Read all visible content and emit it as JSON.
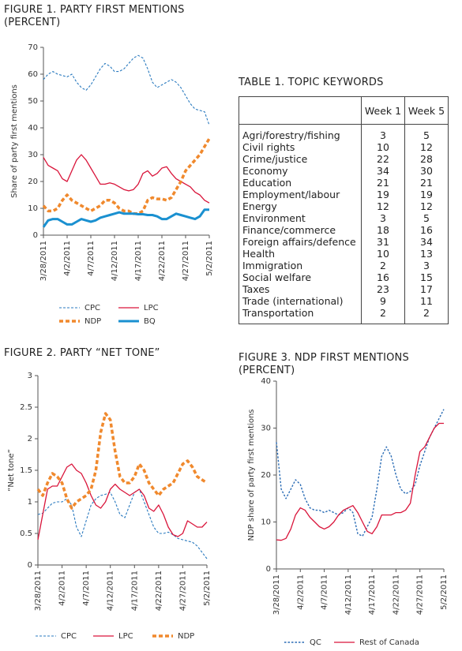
{
  "chart_data": [
    {
      "type": "line",
      "title": "FIGURE 1. PARTY FIRST MENTIONS (PERCENT)",
      "y_label": "Share of party first mentions",
      "categories": [
        "3/28/2011",
        null,
        null,
        null,
        null,
        "4/2/2011",
        null,
        null,
        null,
        null,
        "4/7/2011",
        null,
        null,
        null,
        null,
        "4/12/2011",
        null,
        null,
        null,
        null,
        "4/17/2011",
        null,
        null,
        null,
        null,
        "4/22/2011",
        null,
        null,
        null,
        null,
        "4/27/2011",
        null,
        null,
        null,
        null,
        "5/2/2011"
      ],
      "ylim": [
        0,
        70
      ],
      "yticks": [
        0,
        10,
        20,
        30,
        40,
        50,
        60,
        70
      ],
      "legend": "bottom",
      "series": [
        {
          "name": "CPC",
          "color": "#2a7abf",
          "line_style": "thin-dashed",
          "values": [
            58,
            60,
            61,
            60,
            59.5,
            59,
            60,
            57,
            55,
            54,
            56,
            59,
            62,
            64,
            63,
            61,
            61,
            62,
            64,
            66,
            67,
            66,
            62,
            57,
            55,
            56,
            57,
            58,
            57,
            55,
            52,
            49,
            47,
            46.5,
            46,
            41
          ]
        },
        {
          "name": "LPC",
          "color": "#d9143a",
          "line_style": "solid",
          "values": [
            29,
            26,
            25,
            24,
            21,
            20,
            24,
            28,
            30,
            28,
            25,
            22,
            19,
            19,
            19.5,
            19,
            18,
            17,
            16.5,
            17,
            19,
            23,
            24,
            22,
            23,
            25,
            25.5,
            23,
            21,
            20,
            19,
            18,
            16,
            15,
            13,
            12
          ]
        },
        {
          "name": "NDP",
          "color": "#f0892d",
          "line_style": "thick-dashed",
          "values": [
            11,
            9,
            9,
            10,
            13,
            15,
            13,
            12,
            11,
            10,
            9,
            10,
            11,
            13,
            13,
            12,
            10,
            9,
            9,
            8,
            8,
            9,
            13,
            14,
            13.5,
            13.5,
            13,
            14,
            17,
            20,
            24,
            26,
            28,
            30,
            33,
            36
          ]
        },
        {
          "name": "BQ",
          "color": "#1a90d0",
          "line_style": "thick-solid",
          "values": [
            3,
            5.5,
            6,
            6,
            5,
            4,
            4,
            5,
            6,
            5.5,
            5,
            5.5,
            6.5,
            7,
            7.5,
            8,
            8.5,
            8,
            8,
            8,
            7.8,
            7.8,
            7.5,
            7.5,
            7,
            6,
            6,
            7,
            8,
            7.5,
            7,
            6.5,
            6,
            7,
            9.5,
            9.5
          ]
        }
      ]
    },
    {
      "type": "line",
      "title": "FIGURE 2. PARTY “NET TONE”",
      "y_label": "“Net tone”",
      "categories": [
        "3/28/2011",
        null,
        null,
        null,
        null,
        "4/2/2011",
        null,
        null,
        null,
        null,
        "4/7/2011",
        null,
        null,
        null,
        null,
        "4/12/2011",
        null,
        null,
        null,
        null,
        "4/17/2011",
        null,
        null,
        null,
        null,
        "4/22/2011",
        null,
        null,
        null,
        null,
        "4/27/2011",
        null,
        null,
        null,
        null,
        "5/2/2011"
      ],
      "ylim": [
        0,
        3
      ],
      "yticks": [
        0,
        0.5,
        1,
        1.5,
        2,
        2.5,
        3
      ],
      "legend": "bottom",
      "series": [
        {
          "name": "CPC",
          "color": "#2a7abf",
          "line_style": "thin-dashed",
          "values": [
            0.8,
            0.82,
            0.9,
            0.98,
            1.0,
            1.0,
            1.05,
            0.95,
            0.6,
            0.45,
            0.7,
            0.95,
            1.05,
            1.1,
            1.12,
            1.15,
            1.0,
            0.8,
            0.75,
            0.95,
            1.15,
            1.2,
            1.0,
            0.8,
            0.6,
            0.5,
            0.5,
            0.52,
            0.48,
            0.42,
            0.4,
            0.38,
            0.36,
            0.3,
            0.2,
            0.1
          ]
        },
        {
          "name": "LPC",
          "color": "#d9143a",
          "line_style": "solid",
          "values": [
            0.4,
            0.8,
            1.2,
            1.25,
            1.25,
            1.4,
            1.55,
            1.6,
            1.5,
            1.45,
            1.3,
            1.1,
            0.95,
            0.9,
            1.0,
            1.2,
            1.28,
            1.2,
            1.15,
            1.1,
            1.15,
            1.2,
            1.1,
            0.9,
            0.85,
            0.95,
            0.8,
            0.6,
            0.48,
            0.45,
            0.5,
            0.7,
            0.65,
            0.6,
            0.6,
            0.68
          ]
        },
        {
          "name": "NDP",
          "color": "#f0892d",
          "line_style": "thick-dashed",
          "values": [
            1.2,
            1.1,
            1.3,
            1.45,
            1.4,
            1.3,
            1.05,
            0.9,
            1.0,
            1.05,
            1.1,
            1.2,
            1.5,
            2.1,
            2.4,
            2.3,
            1.8,
            1.4,
            1.3,
            1.3,
            1.4,
            1.6,
            1.5,
            1.3,
            1.2,
            1.1,
            1.2,
            1.25,
            1.3,
            1.45,
            1.6,
            1.65,
            1.55,
            1.4,
            1.35,
            1.3
          ]
        }
      ]
    },
    {
      "type": "line",
      "title": "FIGURE 3. NDP FIRST MENTIONS (PERCENT)",
      "y_label": "NDP share of party first mentions",
      "categories": [
        "3/28/2011",
        null,
        null,
        null,
        null,
        "4/2/2011",
        null,
        null,
        null,
        null,
        "4/7/2011",
        null,
        null,
        null,
        null,
        "4/12/2011",
        null,
        null,
        null,
        null,
        "4/17/2011",
        null,
        null,
        null,
        null,
        "4/22/2011",
        null,
        null,
        null,
        null,
        "4/27/2011",
        null,
        null,
        null,
        null,
        "5/2/2011"
      ],
      "ylim": [
        0,
        40
      ],
      "yticks": [
        0,
        10,
        20,
        30,
        40
      ],
      "legend": "bottom",
      "series": [
        {
          "name": "QC",
          "color": "#2a6cb5",
          "line_style": "dotted",
          "values": [
            27,
            17,
            15,
            17,
            19,
            18,
            15,
            13,
            12.5,
            12.5,
            12,
            12.5,
            12,
            11.5,
            12,
            13,
            12,
            7.5,
            7,
            9,
            11,
            17,
            24,
            26,
            24,
            20,
            17,
            16,
            16.5,
            18,
            22,
            25,
            28,
            30,
            32,
            34
          ]
        },
        {
          "name": "Rest of Canada",
          "color": "#d9143a",
          "line_style": "solid",
          "values": [
            6.2,
            6.1,
            6.5,
            8.5,
            11.5,
            13,
            12.5,
            11,
            10,
            9,
            8.5,
            9,
            10,
            11.5,
            12.5,
            13,
            13.5,
            12,
            10,
            8,
            7.5,
            9,
            11.5,
            11.5,
            11.5,
            12,
            12,
            12.5,
            14,
            20,
            25,
            26,
            28,
            30,
            31,
            31
          ]
        }
      ]
    }
  ],
  "table": {
    "title": "TABLE 1. TOPIC KEYWORDS",
    "headers": [
      "Week 1",
      "Week 5"
    ],
    "rows": [
      [
        "Agri/forestry/fishing",
        3,
        5
      ],
      [
        "Civil rights",
        10,
        12
      ],
      [
        "Crime/justice",
        22,
        28
      ],
      [
        "Economy",
        34,
        30
      ],
      [
        "Education",
        21,
        21
      ],
      [
        "Employment/labour",
        19,
        19
      ],
      [
        "Energy",
        12,
        12
      ],
      [
        "Environment",
        3,
        5
      ],
      [
        "Finance/commerce",
        18,
        16
      ],
      [
        "Foreign affairs/defence",
        31,
        34
      ],
      [
        "Health",
        10,
        13
      ],
      [
        "Immigration",
        2,
        3
      ],
      [
        "Social welfare",
        16,
        15
      ],
      [
        "Taxes",
        23,
        17
      ],
      [
        "Trade (international)",
        9,
        11
      ],
      [
        "Transportation",
        2,
        2
      ]
    ]
  }
}
